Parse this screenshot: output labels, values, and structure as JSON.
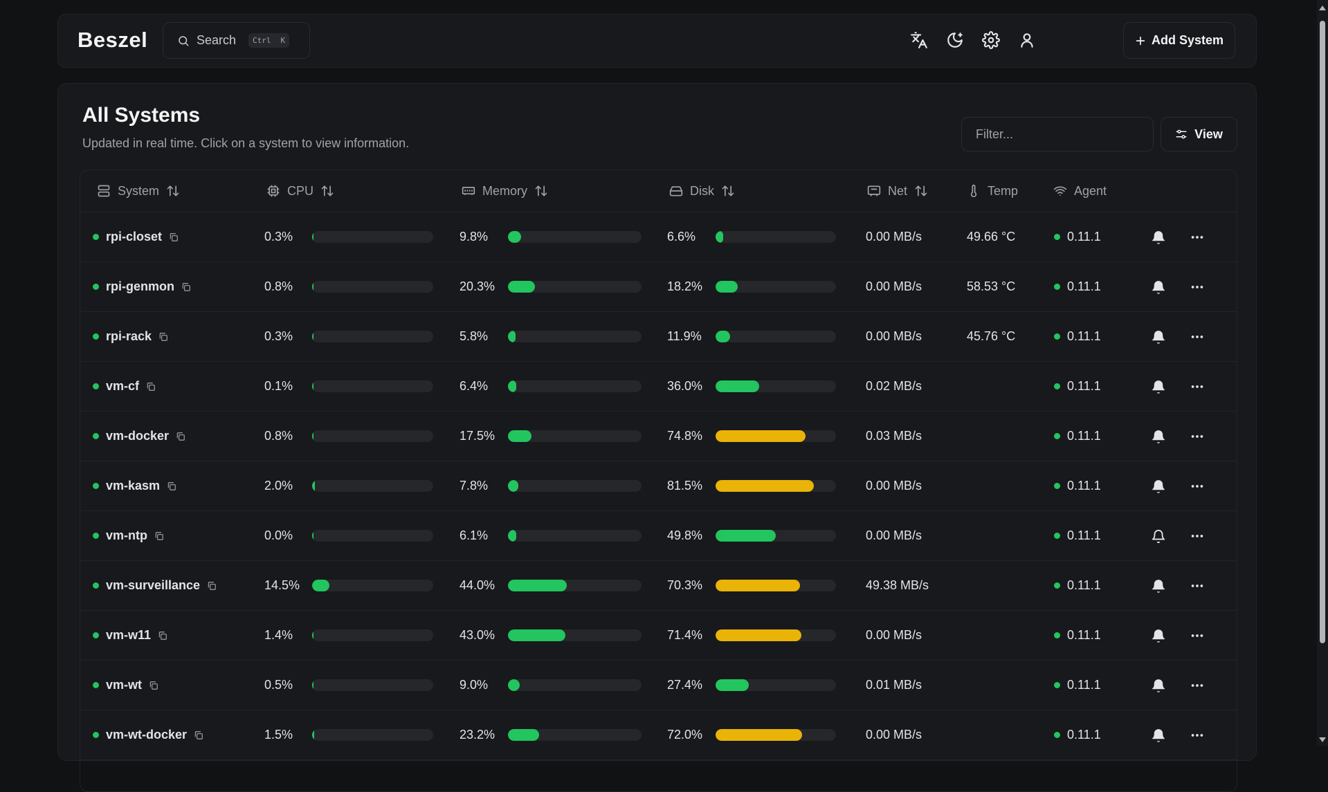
{
  "header": {
    "logo": "Beszel",
    "search_label": "Search",
    "shortcut_key1": "Ctrl",
    "shortcut_key2": "K",
    "add_system_label": "Add System"
  },
  "page": {
    "title": "All Systems",
    "subtitle": "Updated in real time. Click on a system to view information.",
    "filter_placeholder": "Filter...",
    "view_label": "View"
  },
  "columns": {
    "system": "System",
    "cpu": "CPU",
    "memory": "Memory",
    "disk": "Disk",
    "net": "Net",
    "temp": "Temp",
    "agent": "Agent"
  },
  "colors": {
    "ok": "#22c55e",
    "warn": "#eab308",
    "track": "#26272b",
    "status_up": "#22c55e"
  },
  "systems": [
    {
      "name": "rpi-closet",
      "cpu": "0.3%",
      "cpu_v": 0.3,
      "memory": "9.8%",
      "memory_v": 9.8,
      "disk": "6.6%",
      "disk_v": 6.6,
      "net": "0.00 MB/s",
      "temp": "49.66 °C",
      "agent": "0.11.1",
      "alert": true
    },
    {
      "name": "rpi-genmon",
      "cpu": "0.8%",
      "cpu_v": 0.8,
      "memory": "20.3%",
      "memory_v": 20.3,
      "disk": "18.2%",
      "disk_v": 18.2,
      "net": "0.00 MB/s",
      "temp": "58.53 °C",
      "agent": "0.11.1",
      "alert": true
    },
    {
      "name": "rpi-rack",
      "cpu": "0.3%",
      "cpu_v": 0.3,
      "memory": "5.8%",
      "memory_v": 5.8,
      "disk": "11.9%",
      "disk_v": 11.9,
      "net": "0.00 MB/s",
      "temp": "45.76 °C",
      "agent": "0.11.1",
      "alert": true
    },
    {
      "name": "vm-cf",
      "cpu": "0.1%",
      "cpu_v": 0.1,
      "memory": "6.4%",
      "memory_v": 6.4,
      "disk": "36.0%",
      "disk_v": 36.0,
      "net": "0.02 MB/s",
      "temp": "",
      "agent": "0.11.1",
      "alert": true
    },
    {
      "name": "vm-docker",
      "cpu": "0.8%",
      "cpu_v": 0.8,
      "memory": "17.5%",
      "memory_v": 17.5,
      "disk": "74.8%",
      "disk_v": 74.8,
      "net": "0.03 MB/s",
      "temp": "",
      "agent": "0.11.1",
      "alert": true
    },
    {
      "name": "vm-kasm",
      "cpu": "2.0%",
      "cpu_v": 2.0,
      "memory": "7.8%",
      "memory_v": 7.8,
      "disk": "81.5%",
      "disk_v": 81.5,
      "net": "0.00 MB/s",
      "temp": "",
      "agent": "0.11.1",
      "alert": true
    },
    {
      "name": "vm-ntp",
      "cpu": "0.0%",
      "cpu_v": 0.0,
      "memory": "6.1%",
      "memory_v": 6.1,
      "disk": "49.8%",
      "disk_v": 49.8,
      "net": "0.00 MB/s",
      "temp": "",
      "agent": "0.11.1",
      "alert": false
    },
    {
      "name": "vm-surveillance",
      "cpu": "14.5%",
      "cpu_v": 14.5,
      "memory": "44.0%",
      "memory_v": 44.0,
      "disk": "70.3%",
      "disk_v": 70.3,
      "net": "49.38 MB/s",
      "temp": "",
      "agent": "0.11.1",
      "alert": true
    },
    {
      "name": "vm-w11",
      "cpu": "1.4%",
      "cpu_v": 1.4,
      "memory": "43.0%",
      "memory_v": 43.0,
      "disk": "71.4%",
      "disk_v": 71.4,
      "net": "0.00 MB/s",
      "temp": "",
      "agent": "0.11.1",
      "alert": true
    },
    {
      "name": "vm-wt",
      "cpu": "0.5%",
      "cpu_v": 0.5,
      "memory": "9.0%",
      "memory_v": 9.0,
      "disk": "27.4%",
      "disk_v": 27.4,
      "net": "0.01 MB/s",
      "temp": "",
      "agent": "0.11.1",
      "alert": true
    },
    {
      "name": "vm-wt-docker",
      "cpu": "1.5%",
      "cpu_v": 1.5,
      "memory": "23.2%",
      "memory_v": 23.2,
      "disk": "72.0%",
      "disk_v": 72.0,
      "net": "0.00 MB/s",
      "temp": "",
      "agent": "0.11.1",
      "alert": true
    }
  ]
}
